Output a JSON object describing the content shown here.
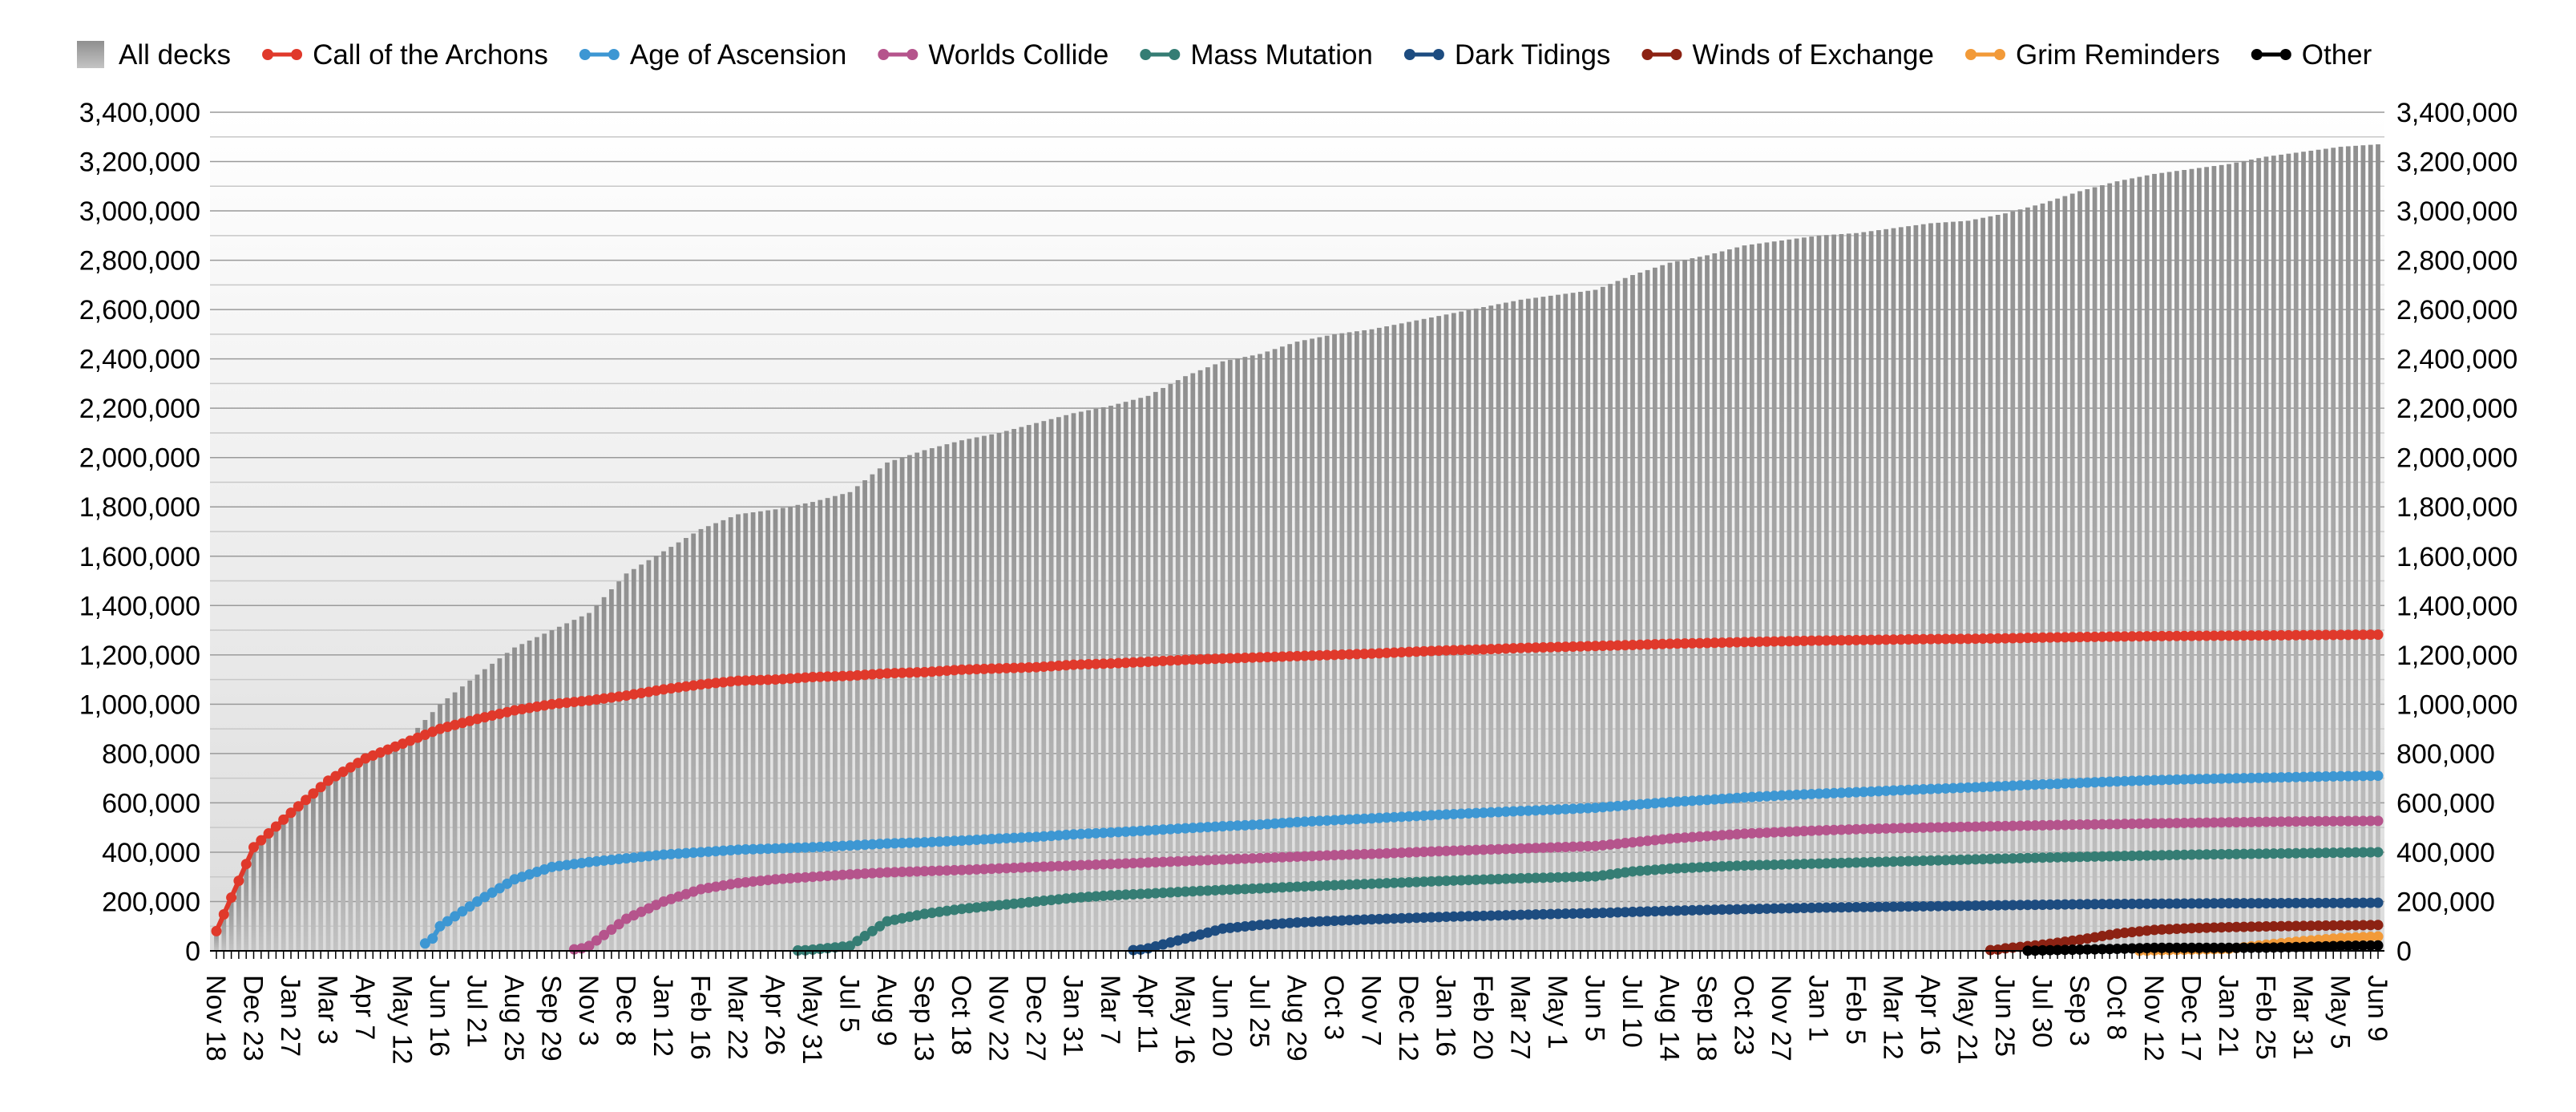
{
  "chart_data": {
    "type": "bar+line",
    "title": "",
    "xlabel": "",
    "ylabel": "",
    "ylim": [
      0,
      3400000
    ],
    "y_ticks": [
      "0",
      "200,000",
      "400,000",
      "600,000",
      "800,000",
      "1,000,000",
      "1,200,000",
      "1,400,000",
      "1,600,000",
      "1,800,000",
      "2,000,000",
      "2,200,000",
      "2,400,000",
      "2,600,000",
      "2,800,000",
      "3,000,000",
      "3,200,000",
      "3,400,000"
    ],
    "grid": true,
    "legend_placement": "top",
    "categories": [
      "Nov 18",
      "Dec 23",
      "Jan 27",
      "Mar 3",
      "Apr 7",
      "May 12",
      "Jun 16",
      "Jul 21",
      "Aug 25",
      "Sep 29",
      "Nov 3",
      "Dec 8",
      "Jan 12",
      "Feb 16",
      "Mar 22",
      "Apr 26",
      "May 31",
      "Jul 5",
      "Aug 9",
      "Sep 13",
      "Oct 18",
      "Nov 22",
      "Dec 27",
      "Jan 31",
      "Mar 7",
      "Apr 11",
      "May 16",
      "Jun 20",
      "Jul 25",
      "Aug 29",
      "Oct 3",
      "Nov 7",
      "Dec 12",
      "Jan 16",
      "Feb 20",
      "Mar 27",
      "May 1",
      "Jun 5",
      "Jul 10",
      "Aug 14",
      "Sep 18",
      "Oct 23",
      "Nov 27",
      "Jan 1",
      "Feb 5",
      "Mar 12",
      "Apr 16",
      "May 21",
      "Jun 25",
      "Jul 30",
      "Sep 3",
      "Oct 8",
      "Nov 12",
      "Dec 17",
      "Jan 21",
      "Feb 25",
      "Mar 31",
      "May 5",
      "Jun 9"
    ],
    "series": [
      {
        "name": "All decks",
        "kind": "bar",
        "color": "#a8a8a8",
        "values": [
          80000,
          400000,
          560000,
          680000,
          780000,
          840000,
          1000000,
          1120000,
          1230000,
          1300000,
          1370000,
          1530000,
          1620000,
          1710000,
          1770000,
          1790000,
          1820000,
          1860000,
          1980000,
          2030000,
          2070000,
          2100000,
          2140000,
          2180000,
          2210000,
          2250000,
          2330000,
          2390000,
          2420000,
          2470000,
          2500000,
          2520000,
          2550000,
          2580000,
          2610000,
          2640000,
          2660000,
          2680000,
          2740000,
          2790000,
          2820000,
          2860000,
          2880000,
          2900000,
          2910000,
          2930000,
          2950000,
          2960000,
          2990000,
          3030000,
          3080000,
          3120000,
          3150000,
          3170000,
          3190000,
          3220000,
          3240000,
          3260000,
          3270000
        ]
      },
      {
        "name": "Call of the Archons",
        "kind": "line",
        "color": "#e0392b",
        "values": [
          80000,
          420000,
          560000,
          690000,
          780000,
          840000,
          900000,
          940000,
          975000,
          1000000,
          1015000,
          1035000,
          1060000,
          1080000,
          1095000,
          1100000,
          1110000,
          1115000,
          1125000,
          1130000,
          1140000,
          1145000,
          1150000,
          1160000,
          1165000,
          1172000,
          1180000,
          1185000,
          1190000,
          1195000,
          1200000,
          1205000,
          1212000,
          1218000,
          1222000,
          1228000,
          1232000,
          1236000,
          1240000,
          1245000,
          1248000,
          1252000,
          1255000,
          1258000,
          1260000,
          1262000,
          1264000,
          1265000,
          1267000,
          1270000,
          1272000,
          1274000,
          1276000,
          1277000,
          1278000,
          1279000,
          1280000,
          1281000,
          1282000
        ]
      },
      {
        "name": "Age of Ascension",
        "kind": "line",
        "color": "#3d97d3",
        "values": [
          null,
          null,
          null,
          null,
          null,
          null,
          100000,
          200000,
          290000,
          340000,
          360000,
          375000,
          390000,
          400000,
          410000,
          415000,
          420000,
          427000,
          435000,
          440000,
          447000,
          455000,
          462000,
          472000,
          480000,
          488000,
          497000,
          505000,
          512000,
          522000,
          530000,
          537000,
          545000,
          553000,
          560000,
          567000,
          573000,
          580000,
          592000,
          603000,
          612000,
          622000,
          630000,
          637000,
          643000,
          650000,
          656000,
          662000,
          668000,
          675000,
          681000,
          687000,
          692000,
          696000,
          699000,
          702000,
          705000,
          708000,
          710000
        ]
      },
      {
        "name": "Worlds Collide",
        "kind": "line",
        "color": "#b5548c",
        "values": [
          null,
          null,
          null,
          null,
          null,
          null,
          null,
          null,
          null,
          null,
          20000,
          130000,
          200000,
          250000,
          275000,
          290000,
          300000,
          310000,
          318000,
          323000,
          328000,
          334000,
          340000,
          346000,
          352000,
          358000,
          364000,
          370000,
          376000,
          382000,
          388000,
          393000,
          399000,
          405000,
          410000,
          415000,
          420000,
          425000,
          440000,
          455000,
          465000,
          475000,
          482000,
          488000,
          493000,
          497000,
          500000,
          503000,
          506000,
          509000,
          512000,
          514000,
          517000,
          519000,
          521000,
          523000,
          525000,
          526000,
          527000
        ]
      },
      {
        "name": "Mass Mutation",
        "kind": "line",
        "color": "#357d74",
        "values": [
          null,
          null,
          null,
          null,
          null,
          null,
          null,
          null,
          null,
          null,
          null,
          null,
          null,
          null,
          null,
          null,
          5000,
          20000,
          120000,
          150000,
          170000,
          185000,
          200000,
          215000,
          225000,
          232000,
          240000,
          247000,
          253000,
          260000,
          266000,
          272000,
          278000,
          284000,
          289000,
          294000,
          298000,
          302000,
          322000,
          333000,
          340000,
          346000,
          350000,
          354000,
          358000,
          362000,
          366000,
          370000,
          374000,
          378000,
          381000,
          384000,
          387000,
          390000,
          392000,
          394000,
          396000,
          398000,
          400000
        ]
      },
      {
        "name": "Dark Tidings",
        "kind": "line",
        "color": "#1d4c80",
        "values": [
          null,
          null,
          null,
          null,
          null,
          null,
          null,
          null,
          null,
          null,
          null,
          null,
          null,
          null,
          null,
          null,
          null,
          null,
          null,
          null,
          null,
          null,
          null,
          null,
          null,
          10000,
          50000,
          90000,
          105000,
          115000,
          122000,
          128000,
          133000,
          138000,
          142000,
          146000,
          150000,
          153000,
          158000,
          162000,
          166000,
          169000,
          172000,
          175000,
          177000,
          179000,
          181000,
          183000,
          185000,
          187000,
          189000,
          190000,
          191000,
          192000,
          193000,
          193000,
          194000,
          194000,
          195000
        ]
      },
      {
        "name": "Winds of Exchange",
        "kind": "line",
        "color": "#8c2213",
        "values": [
          null,
          null,
          null,
          null,
          null,
          null,
          null,
          null,
          null,
          null,
          null,
          null,
          null,
          null,
          null,
          null,
          null,
          null,
          null,
          null,
          null,
          null,
          null,
          null,
          null,
          null,
          null,
          null,
          null,
          null,
          null,
          null,
          null,
          null,
          null,
          null,
          null,
          null,
          null,
          null,
          null,
          null,
          null,
          null,
          null,
          null,
          null,
          null,
          10000,
          25000,
          45000,
          70000,
          85000,
          92000,
          96000,
          99000,
          101000,
          103000,
          105000
        ]
      },
      {
        "name": "Grim Reminders",
        "kind": "line",
        "color": "#f29a38",
        "values": [
          null,
          null,
          null,
          null,
          null,
          null,
          null,
          null,
          null,
          null,
          null,
          null,
          null,
          null,
          null,
          null,
          null,
          null,
          null,
          null,
          null,
          null,
          null,
          null,
          null,
          null,
          null,
          null,
          null,
          null,
          null,
          null,
          null,
          null,
          null,
          null,
          null,
          null,
          null,
          null,
          null,
          null,
          null,
          null,
          null,
          null,
          null,
          null,
          null,
          null,
          null,
          null,
          2000,
          5000,
          8000,
          25000,
          40000,
          52000,
          58000
        ]
      },
      {
        "name": "Other",
        "kind": "line",
        "color": "#000000",
        "values": [
          null,
          null,
          null,
          null,
          null,
          null,
          null,
          null,
          null,
          null,
          null,
          null,
          null,
          null,
          null,
          null,
          null,
          null,
          null,
          null,
          null,
          null,
          null,
          null,
          null,
          null,
          null,
          null,
          null,
          null,
          null,
          null,
          null,
          null,
          null,
          null,
          null,
          null,
          null,
          null,
          null,
          null,
          null,
          null,
          null,
          null,
          null,
          null,
          null,
          2000,
          5000,
          8000,
          12000,
          12000,
          12000,
          13000,
          16000,
          20000,
          22000
        ]
      }
    ]
  }
}
